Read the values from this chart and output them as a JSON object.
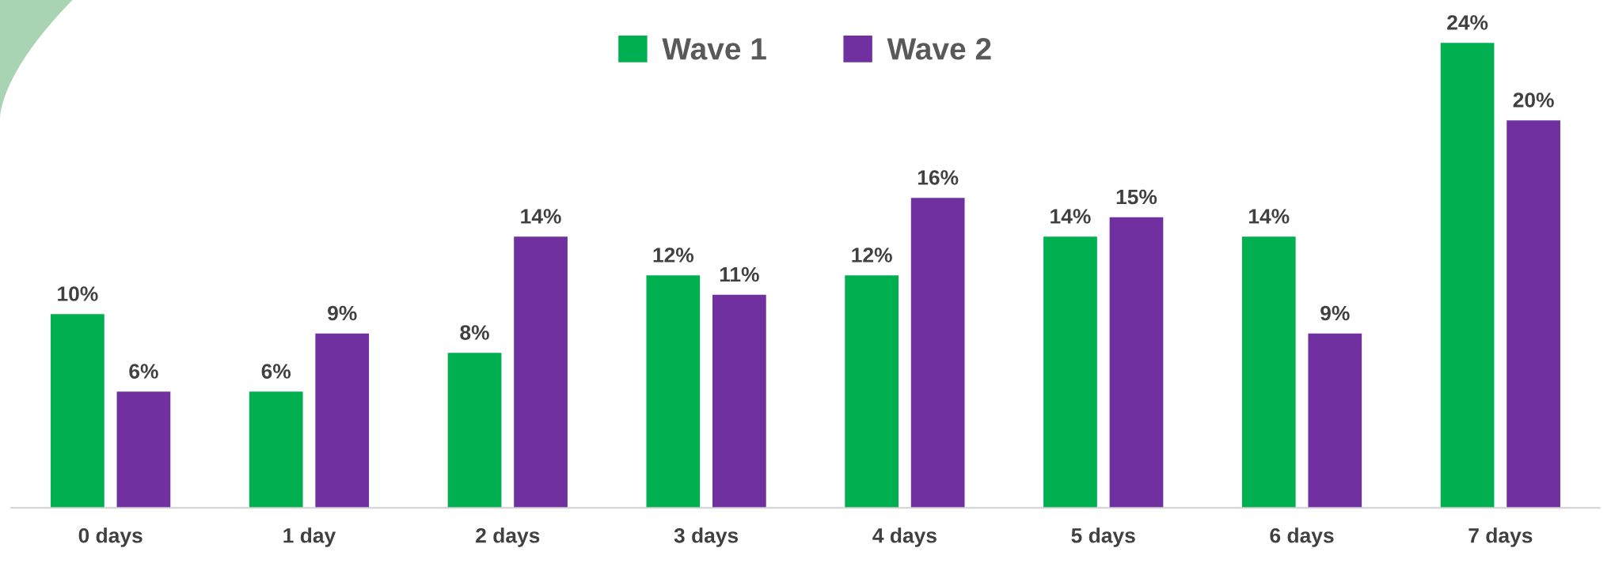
{
  "chart_data": {
    "type": "bar",
    "categories": [
      "0 days",
      "1 day",
      "2 days",
      "3 days",
      "4 days",
      "5 days",
      "6 days",
      "7 days"
    ],
    "series": [
      {
        "name": "Wave 1",
        "color": "#00b050",
        "values": [
          10,
          6,
          8,
          12,
          12,
          14,
          14,
          24
        ],
        "value_labels": [
          "10%",
          "6%",
          "8%",
          "12%",
          "12%",
          "14%",
          "14%",
          "24%"
        ]
      },
      {
        "name": "Wave 2",
        "color": "#7030a0",
        "values": [
          6,
          9,
          14,
          11,
          16,
          15,
          9,
          20
        ],
        "value_labels": [
          "6%",
          "9%",
          "14%",
          "11%",
          "16%",
          "15%",
          "9%",
          "20%"
        ]
      }
    ],
    "legend": "top",
    "grid": false
  }
}
